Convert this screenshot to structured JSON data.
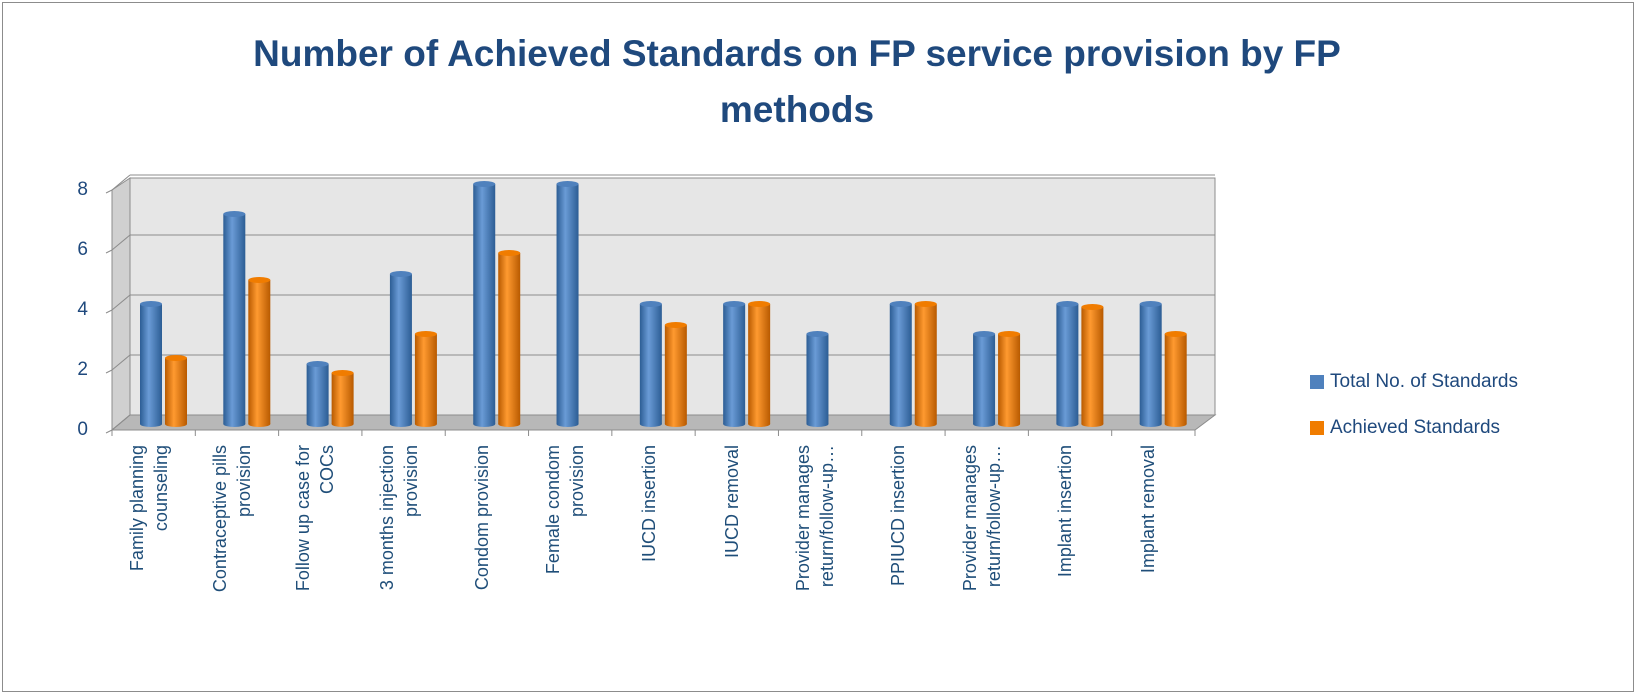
{
  "chart_data": {
    "type": "bar",
    "title": "Number of Achieved Standards on FP service provision by FP methods",
    "categories": [
      "Family planning counseling",
      "Contraceptive pills provision",
      "Follow up case for COCs",
      "3 months injection provision",
      "Condom provision",
      "Female condom provision",
      "IUCD insertion",
      "IUCD removal",
      "Provider manages return/follow-up…",
      "PPIUCD insertion",
      "Provider manages return/follow-up…",
      "Implant insertion",
      "Implant removal"
    ],
    "series": [
      {
        "name": "Total No. of Standards",
        "color": "#4f81bd",
        "values": [
          4,
          7,
          2,
          5,
          8,
          8,
          4,
          4,
          3,
          4,
          3,
          4,
          4
        ]
      },
      {
        "name": "Achieved Standards",
        "color": "#f07c00",
        "values": [
          2.2,
          4.8,
          1.7,
          3,
          5.7,
          null,
          3.3,
          4,
          null,
          4,
          3,
          3.9,
          3
        ]
      }
    ],
    "ylim": [
      0,
      8
    ],
    "yticks": [
      0,
      2,
      4,
      6,
      8
    ],
    "grid": true,
    "legend": "right"
  }
}
